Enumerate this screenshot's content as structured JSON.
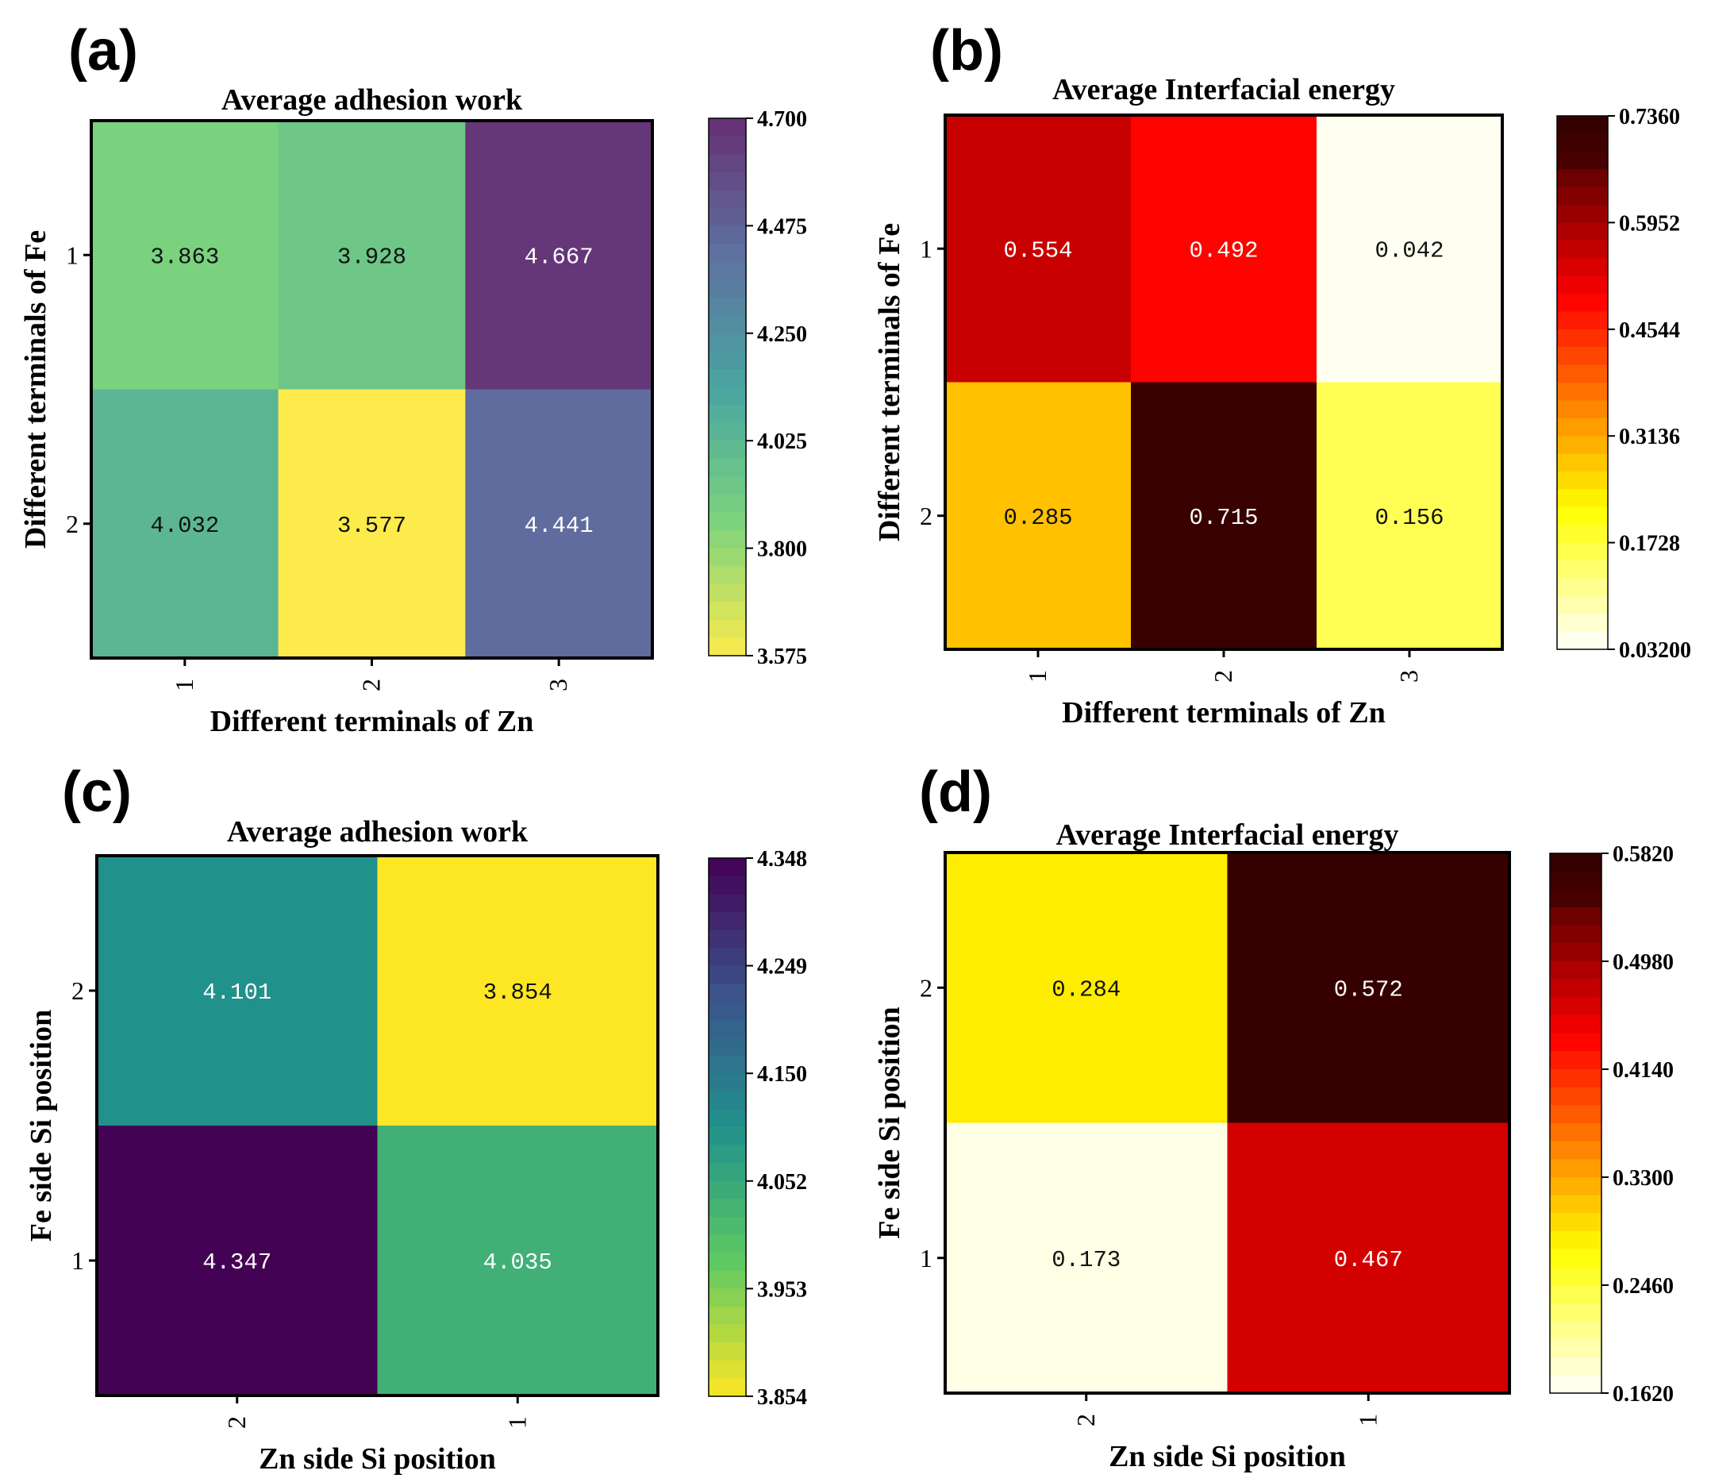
{
  "chart_data": [
    {
      "type": "heatmap",
      "panel": "(a)",
      "title": "Average adhesion work",
      "xlabel": "Different terminals of Zn",
      "ylabel": "Different terminals of Fe",
      "xticks": [
        "1",
        "2",
        "3"
      ],
      "yticks": [
        "1",
        "2"
      ],
      "values": [
        [
          3.863,
          3.928,
          4.667
        ],
        [
          4.032,
          3.577,
          4.441
        ]
      ],
      "labels": [
        [
          "3.863",
          "3.928",
          "4.667"
        ],
        [
          "4.032",
          "3.577",
          "4.441"
        ]
      ],
      "colormap": "viridis_r",
      "vmin": 3.575,
      "vmax": 4.7,
      "colorbar_ticks": [
        "4.700",
        "4.475",
        "4.250",
        "4.025",
        "3.800",
        "3.575"
      ]
    },
    {
      "type": "heatmap",
      "panel": "(b)",
      "title": "Average Interfacial energy",
      "xlabel": "Different terminals of Zn",
      "ylabel": "Different terminals of Fe",
      "xticks": [
        "1",
        "2",
        "3"
      ],
      "yticks": [
        "1",
        "2"
      ],
      "values": [
        [
          0.554,
          0.492,
          0.042
        ],
        [
          0.285,
          0.715,
          0.156
        ]
      ],
      "labels": [
        [
          "0.554",
          "0.492",
          "0.042"
        ],
        [
          "0.285",
          "0.715",
          "0.156"
        ]
      ],
      "colormap": "hot_r",
      "vmin": 0.032,
      "vmax": 0.736,
      "colorbar_ticks": [
        "0.7360",
        "0.5952",
        "0.4544",
        "0.3136",
        "0.1728",
        "0.03200"
      ]
    },
    {
      "type": "heatmap",
      "panel": "(c)",
      "title": "Average adhesion work",
      "xlabel": "Zn side Si position",
      "ylabel": "Fe side Si position",
      "xticks": [
        "2",
        "1"
      ],
      "yticks": [
        "2",
        "1"
      ],
      "values": [
        [
          4.101,
          3.854
        ],
        [
          4.347,
          4.035
        ]
      ],
      "labels": [
        [
          "4.101",
          "3.854"
        ],
        [
          "4.347",
          "4.035"
        ]
      ],
      "colormap": "viridis_r",
      "vmin": 3.854,
      "vmax": 4.348,
      "colorbar_ticks": [
        "4.348",
        "4.249",
        "4.150",
        "4.052",
        "3.953",
        "3.854"
      ]
    },
    {
      "type": "heatmap",
      "panel": "(d)",
      "title": "Average Interfacial energy",
      "xlabel": "Zn side Si position",
      "ylabel": "Fe side Si position",
      "xticks": [
        "2",
        "1"
      ],
      "yticks": [
        "2",
        "1"
      ],
      "values": [
        [
          0.284,
          0.572
        ],
        [
          0.173,
          0.467
        ]
      ],
      "labels": [
        [
          "0.284",
          "0.572"
        ],
        [
          "0.173",
          "0.467"
        ]
      ],
      "colormap": "hot_r",
      "vmin": 0.162,
      "vmax": 0.582,
      "colorbar_ticks": [
        "0.5820",
        "0.4980",
        "0.4140",
        "0.3300",
        "0.2460",
        "0.1620"
      ]
    }
  ]
}
